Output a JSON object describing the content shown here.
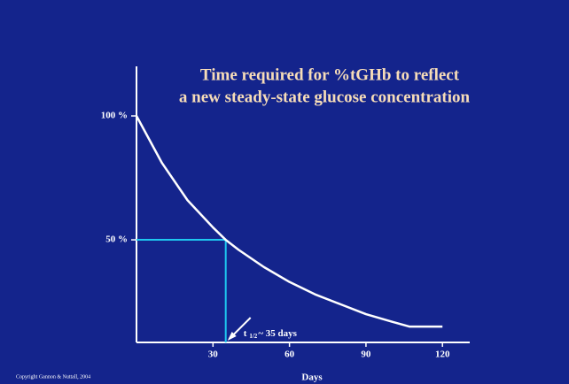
{
  "chart_data": {
    "type": "line",
    "title": [
      "Time required for %tGHb to reflect",
      "a new steady-state glucose concentration"
    ],
    "x_label": "Days",
    "x": [
      0,
      10,
      20,
      30,
      35,
      40,
      50,
      60,
      70,
      80,
      90,
      100,
      107,
      120
    ],
    "series": [
      {
        "color": "#ffffff",
        "values": [
          100,
          81,
          66,
          55,
          50,
          46,
          39,
          33,
          28,
          24,
          20,
          17,
          15,
          15
        ]
      }
    ],
    "xlim": [
      0,
      130
    ],
    "xticks": [
      30,
      60,
      90,
      120
    ],
    "ylim": [
      8.6,
      120
    ],
    "yticks": [
      {
        "value": 100,
        "label": "100 %"
      },
      {
        "value": 50,
        "label": "50 %"
      }
    ],
    "half_life": {
      "x": 35,
      "y": 50,
      "color": "#1ec8f0"
    },
    "annotation": {
      "symbol": "t",
      "subscript": "1/2",
      "text": "~ 35 days"
    },
    "copyright": "Copyright Gannon & Nuttall, 2004"
  }
}
